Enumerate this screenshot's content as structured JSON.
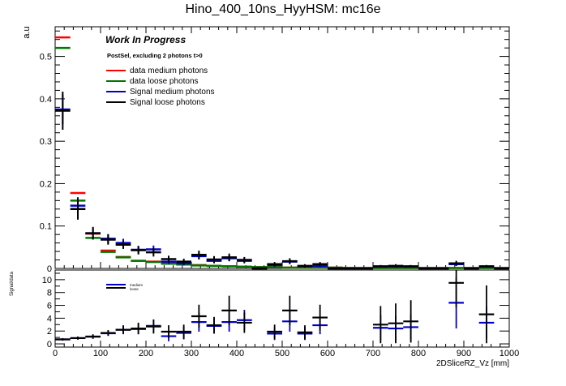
{
  "chart_data": [
    {
      "panel": "main",
      "type": "errorbar",
      "title": "Hino_400_10ns_HyyHSM: mc16e",
      "xlabel": "",
      "ylabel": "a.u",
      "xlim": [
        0,
        1000
      ],
      "ylim": [
        0,
        0.57
      ],
      "yticks": [
        0.1,
        0.2,
        0.3,
        0.4,
        0.5
      ],
      "ytick_labels": [
        "0.1",
        "0.2",
        "0.3",
        "0.4",
        "0.5"
      ],
      "ylabel_zero": "0",
      "annotations": [
        "Work In Progress",
        "PostSel, excluding 2 photons t>0"
      ],
      "legend": [
        "data medium photons",
        "data loose photons",
        "Signal medium photons",
        "Signal loose photons"
      ],
      "bin_edges": [
        0,
        33.3,
        66.7,
        100,
        133.3,
        166.7,
        200,
        233.3,
        266.7,
        300,
        333.3,
        366.7,
        400,
        433.3,
        466.7,
        500,
        533.3,
        566.7,
        600,
        633.3,
        666.7,
        700,
        733.3,
        766.7,
        800,
        833.3,
        866.7,
        900,
        933.3,
        966.7,
        1000
      ],
      "series": [
        {
          "name": "data medium photons",
          "color": "#ff0000",
          "values": [
            0.545,
            0.178,
            0.082,
            0.042,
            0.027,
            0.018,
            0.016,
            0.012,
            0.01,
            0.008,
            0.006,
            0.005,
            0.004,
            0.003,
            0.003,
            0.002,
            0.002,
            0.002,
            0.002,
            0.001,
            0.001,
            0.001,
            0.001,
            0.001,
            0.001,
            0.001,
            0.001,
            0.001,
            0.001,
            0.001
          ],
          "errors": []
        },
        {
          "name": "data loose photons",
          "color": "#007700",
          "values": [
            0.52,
            0.16,
            0.072,
            0.039,
            0.026,
            0.018,
            0.015,
            0.011,
            0.009,
            0.007,
            0.006,
            0.005,
            0.004,
            0.003,
            0.003,
            0.002,
            0.002,
            0.002,
            0.002,
            0.001,
            0.001,
            0.001,
            0.001,
            0.001,
            0.001,
            0.001,
            0.001,
            0.001,
            0.001,
            0.001
          ],
          "errors": []
        },
        {
          "name": "Signal medium photons",
          "color": "#0000cc",
          "values": [
            0.375,
            0.148,
            0.083,
            0.07,
            0.06,
            0.044,
            0.045,
            0.016,
            0.012,
            0.029,
            0.018,
            0.024,
            0.018,
            0.0,
            0.008,
            0.016,
            0.005,
            0.006,
            0.0,
            0.0,
            0.0,
            0.004,
            0.004,
            0.004,
            0.0,
            0.0,
            0.01,
            0.0,
            0.004,
            0.0
          ],
          "errors": [
            0.035,
            0.02,
            0.012,
            0.011,
            0.01,
            0.009,
            0.009,
            0.006,
            0.005,
            0.008,
            0.006,
            0.007,
            0.006,
            0,
            0.004,
            0.005,
            0.003,
            0.003,
            0,
            0,
            0,
            0.002,
            0.002,
            0.002,
            0,
            0,
            0.004,
            0,
            0.002,
            0
          ]
        },
        {
          "name": "Signal loose photons",
          "color": "#000000",
          "values": [
            0.372,
            0.14,
            0.083,
            0.068,
            0.056,
            0.043,
            0.038,
            0.022,
            0.016,
            0.032,
            0.021,
            0.026,
            0.02,
            0.0,
            0.01,
            0.017,
            0.006,
            0.01,
            0.0,
            0.0,
            0.0,
            0.005,
            0.006,
            0.005,
            0.0,
            0.0,
            0.012,
            0.0,
            0.005,
            0.0
          ],
          "errors": [
            0.045,
            0.025,
            0.015,
            0.012,
            0.01,
            0.01,
            0.01,
            0.008,
            0.007,
            0.01,
            0.008,
            0.009,
            0.007,
            0,
            0.005,
            0.007,
            0.004,
            0.005,
            0,
            0,
            0,
            0.003,
            0.004,
            0.003,
            0,
            0,
            0.006,
            0,
            0.003,
            0
          ]
        }
      ]
    },
    {
      "panel": "ratio",
      "type": "errorbar",
      "xlabel": "2DSliceRZ_Vz [mm]",
      "ylabel": "Signal/data",
      "xlim": [
        0,
        1000
      ],
      "ylim": [
        -0.5,
        11.5
      ],
      "yticks": [
        0,
        2,
        4,
        6,
        8,
        10
      ],
      "ytick_labels": [
        "0",
        "2",
        "4",
        "6",
        "8",
        "10"
      ],
      "xticks": [
        0,
        100,
        200,
        300,
        400,
        500,
        600,
        700,
        800,
        900,
        1000
      ],
      "xtick_labels": [
        "0",
        "100",
        "200",
        "300",
        "400",
        "500",
        "600",
        "700",
        "800",
        "900",
        "1000"
      ],
      "legend": [
        "medium",
        "loose"
      ],
      "series": [
        {
          "name": "medium",
          "color": "#0000cc",
          "x": [
            16.7,
            50,
            83.3,
            116.7,
            150,
            183.3,
            216.7,
            250,
            283.3,
            316.7,
            350,
            383.3,
            416.7,
            483.3,
            516.7,
            550,
            583.3,
            716.7,
            750,
            783.3,
            883.3,
            950
          ],
          "values": [
            0.7,
            0.9,
            1.1,
            1.65,
            2.2,
            2.3,
            2.8,
            1.2,
            1.7,
            3.4,
            2.8,
            3.4,
            3.7,
            1.6,
            3.5,
            1.6,
            2.9,
            2.5,
            2.4,
            2.6,
            6.4,
            3.3
          ],
          "errors": [
            0.15,
            0.2,
            0.3,
            0.4,
            0.6,
            0.8,
            1.0,
            0.8,
            1.0,
            1.5,
            1.2,
            1.5,
            1.6,
            1.0,
            1.6,
            1.0,
            1.4,
            2.0,
            2.0,
            2.0,
            4.0,
            2.5
          ]
        },
        {
          "name": "loose",
          "color": "#000000",
          "x": [
            16.7,
            50,
            83.3,
            116.7,
            150,
            183.3,
            216.7,
            250,
            283.3,
            316.7,
            350,
            383.3,
            416.7,
            483.3,
            516.7,
            550,
            583.3,
            716.7,
            750,
            783.3,
            883.3,
            950
          ],
          "values": [
            0.7,
            0.9,
            1.15,
            1.7,
            2.2,
            2.4,
            2.7,
            1.9,
            1.9,
            4.3,
            2.9,
            5.2,
            3.3,
            1.9,
            5.2,
            1.8,
            4.1,
            3.0,
            3.2,
            3.5,
            9.5,
            4.6
          ],
          "errors": [
            0.2,
            0.25,
            0.35,
            0.45,
            0.7,
            0.9,
            1.1,
            1.0,
            1.1,
            1.8,
            1.3,
            2.3,
            1.6,
            1.1,
            2.3,
            1.1,
            2.0,
            2.9,
            3.1,
            3.3,
            3.8,
            4.5
          ]
        }
      ]
    }
  ]
}
